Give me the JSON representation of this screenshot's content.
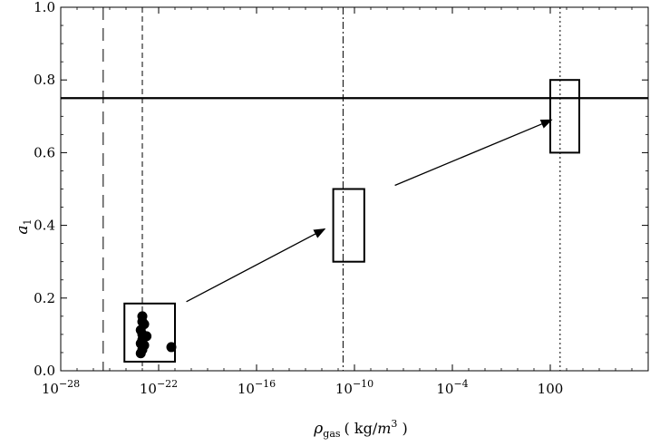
{
  "chart_data": {
    "type": "scatter",
    "x_scale": "log",
    "xlim": [
      1e-28,
      100000000.0
    ],
    "ylim": [
      0.0,
      1.0
    ],
    "x_major_ticks": [
      {
        "value": 1e-28,
        "label_base": "10",
        "label_exp": "−28"
      },
      {
        "value": 1e-22,
        "label_base": "10",
        "label_exp": "−22"
      },
      {
        "value": 1e-16,
        "label_base": "10",
        "label_exp": "−16"
      },
      {
        "value": 1e-10,
        "label_base": "10",
        "label_exp": "−10"
      },
      {
        "value": 0.0001,
        "label_base": "10",
        "label_exp": "−4"
      },
      {
        "value": 100,
        "label_base": "100",
        "label_exp": ""
      }
    ],
    "y_ticks": [
      {
        "value": 0.0,
        "label": "0.0"
      },
      {
        "value": 0.2,
        "label": "0.2"
      },
      {
        "value": 0.4,
        "label": "0.4"
      },
      {
        "value": 0.6,
        "label": "0.6"
      },
      {
        "value": 0.8,
        "label": "0.8"
      },
      {
        "value": 1.0,
        "label": "1.0"
      }
    ],
    "ylabel": {
      "main": "a",
      "sub": "1"
    },
    "xlabel": {
      "main": "ρ",
      "sub": "gas",
      "unit_open": "( kg/",
      "unit_m": "m",
      "unit_exp": "3",
      "unit_close": " )"
    },
    "horizontal_line": {
      "y": 0.75
    },
    "vertical_lines": [
      {
        "x": 4e-26,
        "style": "long-dash"
      },
      {
        "x": 1e-23,
        "style": "dash"
      },
      {
        "x": 2e-11,
        "style": "dash-dot"
      },
      {
        "x": 400,
        "style": "dot"
      }
    ],
    "boxes": [
      {
        "x0": 8e-25,
        "x1": 1e-21,
        "y0": 0.025,
        "y1": 0.185
      },
      {
        "x0": 5e-12,
        "x1": 4e-10,
        "y0": 0.3,
        "y1": 0.5
      },
      {
        "x0": 100,
        "x1": 6000,
        "y0": 0.6,
        "y1": 0.8
      }
    ],
    "arrows": [
      {
        "x0": 5e-21,
        "y0": 0.19,
        "x1": 1.5e-12,
        "y1": 0.39
      },
      {
        "x0": 3e-08,
        "y0": 0.51,
        "x1": 120,
        "y1": 0.69
      }
    ],
    "points": [
      {
        "x": 1e-23,
        "y": 0.15
      },
      {
        "x": 1e-23,
        "y": 0.135
      },
      {
        "x": 1.3e-23,
        "y": 0.128
      },
      {
        "x": 8e-24,
        "y": 0.112
      },
      {
        "x": 1e-23,
        "y": 0.1
      },
      {
        "x": 1.8e-23,
        "y": 0.095
      },
      {
        "x": 1e-23,
        "y": 0.085
      },
      {
        "x": 8e-24,
        "y": 0.075
      },
      {
        "x": 1.3e-23,
        "y": 0.07
      },
      {
        "x": 1e-23,
        "y": 0.058
      },
      {
        "x": 8e-24,
        "y": 0.048
      },
      {
        "x": 6e-22,
        "y": 0.065
      }
    ]
  }
}
